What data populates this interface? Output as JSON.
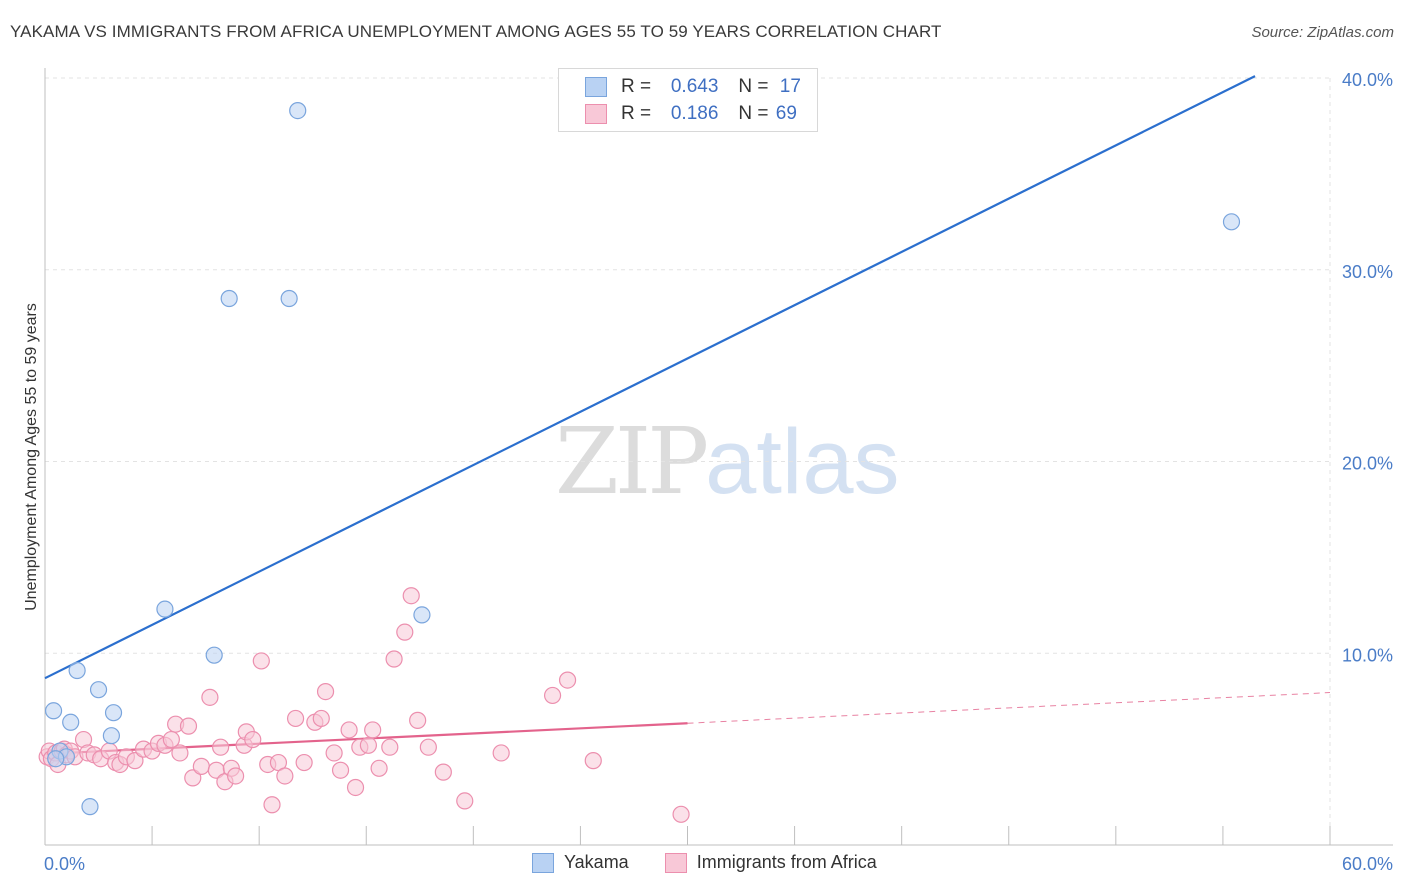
{
  "title": "YAKAMA VS IMMIGRANTS FROM AFRICA UNEMPLOYMENT AMONG AGES 55 TO 59 YEARS CORRELATION CHART",
  "source": "Source: ZipAtlas.com",
  "watermark": {
    "zip": "ZIP",
    "atlas": "atlas"
  },
  "legend": {
    "r_label": "R =",
    "n_label": "N =",
    "series1": {
      "r": "0.643",
      "n": "17"
    },
    "series2": {
      "r": "0.186",
      "n": "69"
    }
  },
  "colors": {
    "yakama_fill": "#b9d2f3",
    "yakama_stroke": "#7aa5dd",
    "yakama_line": "#2b6fce",
    "africa_fill": "#f8c8d7",
    "africa_stroke": "#ec8fae",
    "africa_line": "#e3638c",
    "tick_text": "#4a7cc7"
  },
  "chart_data": {
    "type": "scatter",
    "xlabel": "",
    "ylabel": "Unemployment Among Ages 55 to 59 years",
    "xlim": [
      0,
      60
    ],
    "ylim": [
      0,
      40
    ],
    "x_tick_labels": [
      {
        "v": 0,
        "label": "0.0%"
      },
      {
        "v": 60,
        "label": "60.0%"
      }
    ],
    "y_tick_labels": [
      {
        "v": 10,
        "label": "10.0%"
      },
      {
        "v": 20,
        "label": "20.0%"
      },
      {
        "v": 30,
        "label": "30.0%"
      },
      {
        "v": 40,
        "label": "40.0%"
      }
    ],
    "series": [
      {
        "name": "Yakama",
        "trend": {
          "x0": 0,
          "y0": 8.7,
          "x1": 56.5,
          "y1": 40.1,
          "dashed_to": null
        },
        "points": [
          [
            11.8,
            38.3
          ],
          [
            8.6,
            28.5
          ],
          [
            11.4,
            28.5
          ],
          [
            55.4,
            32.5
          ],
          [
            5.6,
            12.3
          ],
          [
            17.6,
            12.0
          ],
          [
            7.9,
            9.9
          ],
          [
            1.5,
            9.1
          ],
          [
            2.5,
            8.1
          ],
          [
            0.4,
            7.0
          ],
          [
            3.2,
            6.9
          ],
          [
            1.2,
            6.4
          ],
          [
            3.1,
            5.7
          ],
          [
            0.7,
            4.9
          ],
          [
            1.0,
            4.6
          ],
          [
            0.5,
            4.5
          ],
          [
            2.1,
            2.0
          ]
        ]
      },
      {
        "name": "Immigrants from Africa",
        "trend": {
          "x0": 0,
          "y0": 4.75,
          "x1": 30.0,
          "y1": 6.35,
          "dashed_to": {
            "x": 60,
            "y": 7.95
          }
        },
        "points": [
          [
            0.1,
            4.6
          ],
          [
            0.2,
            4.9
          ],
          [
            0.3,
            4.5
          ],
          [
            0.5,
            4.8
          ],
          [
            0.6,
            4.2
          ],
          [
            0.8,
            4.9
          ],
          [
            0.9,
            5.0
          ],
          [
            1.0,
            4.7
          ],
          [
            1.2,
            4.9
          ],
          [
            1.4,
            4.6
          ],
          [
            1.8,
            5.5
          ],
          [
            2.0,
            4.8
          ],
          [
            2.3,
            4.7
          ],
          [
            2.6,
            4.5
          ],
          [
            3.0,
            4.9
          ],
          [
            3.3,
            4.3
          ],
          [
            3.5,
            4.2
          ],
          [
            3.8,
            4.6
          ],
          [
            4.2,
            4.4
          ],
          [
            4.6,
            5.0
          ],
          [
            5.0,
            4.9
          ],
          [
            5.3,
            5.3
          ],
          [
            5.6,
            5.2
          ],
          [
            5.9,
            5.5
          ],
          [
            6.1,
            6.3
          ],
          [
            6.3,
            4.8
          ],
          [
            6.7,
            6.2
          ],
          [
            6.9,
            3.5
          ],
          [
            7.3,
            4.1
          ],
          [
            7.7,
            7.7
          ],
          [
            8.0,
            3.9
          ],
          [
            8.2,
            5.1
          ],
          [
            8.4,
            3.3
          ],
          [
            8.7,
            4.0
          ],
          [
            8.9,
            3.6
          ],
          [
            9.3,
            5.2
          ],
          [
            9.4,
            5.9
          ],
          [
            9.7,
            5.5
          ],
          [
            10.1,
            9.6
          ],
          [
            10.4,
            4.2
          ],
          [
            10.6,
            2.1
          ],
          [
            10.9,
            4.3
          ],
          [
            11.2,
            3.6
          ],
          [
            11.7,
            6.6
          ],
          [
            12.1,
            4.3
          ],
          [
            12.6,
            6.4
          ],
          [
            12.9,
            6.6
          ],
          [
            13.1,
            8.0
          ],
          [
            13.5,
            4.8
          ],
          [
            13.8,
            3.9
          ],
          [
            14.2,
            6.0
          ],
          [
            14.5,
            3.0
          ],
          [
            14.7,
            5.1
          ],
          [
            15.1,
            5.2
          ],
          [
            15.3,
            6.0
          ],
          [
            15.6,
            4.0
          ],
          [
            16.1,
            5.1
          ],
          [
            16.3,
            9.7
          ],
          [
            16.8,
            11.1
          ],
          [
            17.1,
            13.0
          ],
          [
            17.4,
            6.5
          ],
          [
            17.9,
            5.1
          ],
          [
            18.6,
            3.8
          ],
          [
            19.6,
            2.3
          ],
          [
            21.3,
            4.8
          ],
          [
            23.7,
            7.8
          ],
          [
            24.4,
            8.6
          ],
          [
            25.6,
            4.4
          ],
          [
            29.7,
            1.6
          ]
        ]
      }
    ]
  },
  "bottom_legend": {
    "series1": "Yakama",
    "series2": "Immigrants from Africa"
  }
}
